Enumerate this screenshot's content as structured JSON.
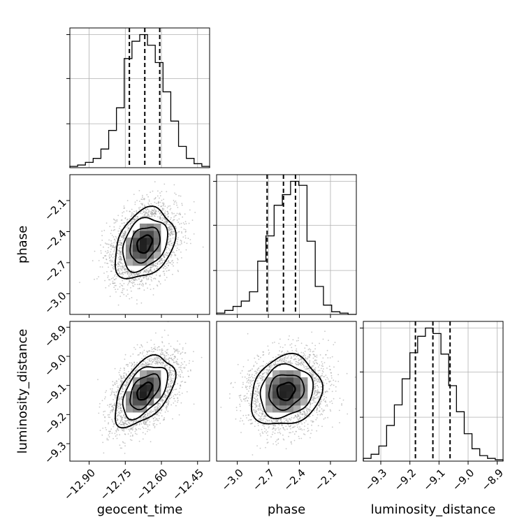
{
  "chart_data": {
    "type": "corner",
    "parameters": [
      "geocent_time",
      "phase",
      "luminosity_distance"
    ],
    "axis_labels": {
      "geocent_time": "geocent_time",
      "phase": "phase",
      "luminosity_distance": "luminosity_distance"
    },
    "ranges": {
      "geocent_time": [
        -12.98,
        -12.4
      ],
      "phase": [
        -3.2,
        -1.85
      ],
      "luminosity_distance": [
        -9.36,
        -8.88
      ]
    },
    "ticks": {
      "geocent_time": [
        {
          "value": -12.9,
          "label": "−12.90"
        },
        {
          "value": -12.75,
          "label": "−12.75"
        },
        {
          "value": -12.6,
          "label": "−12.60"
        },
        {
          "value": -12.45,
          "label": "−12.45"
        }
      ],
      "phase": [
        {
          "value": -3.0,
          "label": "−3.0"
        },
        {
          "value": -2.7,
          "label": "−2.7"
        },
        {
          "value": -2.4,
          "label": "−2.4"
        },
        {
          "value": -2.1,
          "label": "−2.1"
        }
      ],
      "luminosity_distance": [
        {
          "value": -9.3,
          "label": "−9.3"
        },
        {
          "value": -9.2,
          "label": "−9.2"
        },
        {
          "value": -9.1,
          "label": "−9.1"
        },
        {
          "value": -9.0,
          "label": "−9.0"
        },
        {
          "value": -8.9,
          "label": "−8.9"
        }
      ]
    },
    "quantiles": {
      "geocent_time": [
        -12.733,
        -12.669,
        -12.607
      ],
      "phase": [
        -2.712,
        -2.554,
        -2.438
      ],
      "luminosity_distance": [
        -9.181,
        -9.121,
        -9.062
      ]
    },
    "histograms": {
      "geocent_time": [
        0.01,
        0.02,
        0.04,
        0.07,
        0.14,
        0.28,
        0.45,
        0.82,
        0.95,
        1.0,
        0.92,
        0.79,
        0.57,
        0.35,
        0.16,
        0.07,
        0.03,
        0.01
      ],
      "phase": [
        0.01,
        0.03,
        0.06,
        0.1,
        0.17,
        0.4,
        0.59,
        0.82,
        0.9,
        1.0,
        0.97,
        0.55,
        0.21,
        0.07,
        0.02,
        0.01,
        0.0
      ],
      "luminosity_distance": [
        0.02,
        0.05,
        0.11,
        0.26,
        0.41,
        0.6,
        0.79,
        0.91,
        0.97,
        0.93,
        0.78,
        0.55,
        0.36,
        0.2,
        0.09,
        0.04,
        0.02,
        0.01
      ]
    },
    "joint": {
      "phase_vs_geocent_time": {
        "x": "geocent_time",
        "y": "phase",
        "mean": [
          -12.67,
          -2.52
        ],
        "std": [
          0.062,
          0.17
        ],
        "rho": 0.3
      },
      "luminosity_distance_vs_geocent_time": {
        "x": "geocent_time",
        "y": "luminosity_distance",
        "mean": [
          -12.67,
          -9.12
        ],
        "std": [
          0.062,
          0.06
        ],
        "rho": 0.5
      },
      "luminosity_distance_vs_phase": {
        "x": "phase",
        "y": "luminosity_distance",
        "mean": [
          -2.53,
          -9.12
        ],
        "std": [
          0.17,
          0.06
        ],
        "rho": 0.15
      }
    },
    "contour_levels_sigma": [
      0.5,
      1.0,
      1.5,
      2.0
    ],
    "grid": true,
    "colors": {
      "line": "#000000",
      "grid": "#b0b0b0",
      "scatter": "#9a9a9a",
      "density_dark": "#111111"
    }
  }
}
